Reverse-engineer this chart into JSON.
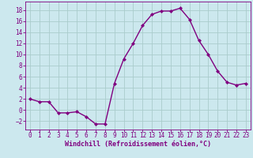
{
  "x": [
    0,
    1,
    2,
    3,
    4,
    5,
    6,
    7,
    8,
    9,
    10,
    11,
    12,
    13,
    14,
    15,
    16,
    17,
    18,
    19,
    20,
    21,
    22,
    23
  ],
  "y": [
    2,
    1.5,
    1.5,
    -0.5,
    -0.5,
    -0.3,
    -1.2,
    -2.5,
    -2.5,
    4.8,
    9.2,
    12.0,
    15.2,
    17.2,
    17.8,
    17.8,
    18.3,
    16.3,
    12.5,
    10.0,
    7.0,
    5.0,
    4.5,
    4.8
  ],
  "line_color": "#800080",
  "marker": "D",
  "marker_size": 2.0,
  "bg_color": "#cce8ee",
  "grid_color": "#aacccc",
  "xlabel": "Windchill (Refroidissement éolien,°C)",
  "xlabel_color": "#800080",
  "tick_color": "#800080",
  "ylim": [
    -3.5,
    19.5
  ],
  "xlim": [
    -0.5,
    23.5
  ],
  "yticks": [
    -2,
    0,
    2,
    4,
    6,
    8,
    10,
    12,
    14,
    16,
    18
  ],
  "xticks": [
    0,
    1,
    2,
    3,
    4,
    5,
    6,
    7,
    8,
    9,
    10,
    11,
    12,
    13,
    14,
    15,
    16,
    17,
    18,
    19,
    20,
    21,
    22,
    23
  ],
  "linewidth": 1.0,
  "tick_fontsize": 5.5,
  "xlabel_fontsize": 6.0
}
